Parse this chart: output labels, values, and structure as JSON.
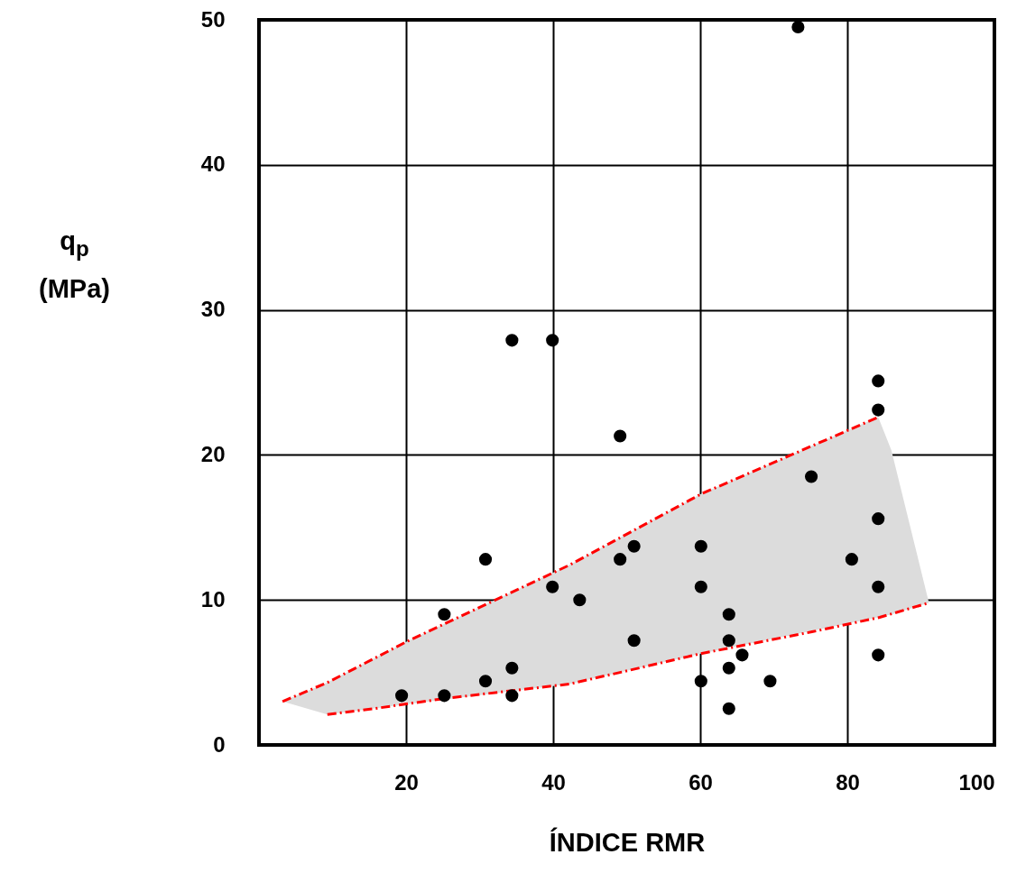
{
  "chart_data": {
    "type": "scatter",
    "xlabel": "ÍNDICE RMR",
    "ylabel": "q$_{p}$ (MPa)",
    "xlim": [
      0,
      100
    ],
    "ylim": [
      0,
      50
    ],
    "xticks": [
      20,
      40,
      60,
      80,
      100
    ],
    "yticks": [
      0,
      10,
      20,
      30,
      40,
      50
    ],
    "grid": true,
    "marker": "circle",
    "series": [
      {
        "type": "line",
        "color": "#ff0000",
        "line_style": "dashed",
        "marker": "none",
        "x": [
          3.2,
          9.3,
          20,
          42.2,
          60.1,
          84.2,
          86,
          91.1
        ],
        "values": [
          3.0,
          4.3,
          7.1,
          12.4,
          17.3,
          22.6,
          null,
          null
        ],
        "lower": [
          3.0,
          2.1,
          2.8,
          4.2,
          6.3,
          8.8,
          9.0,
          9.8
        ],
        "upper": [
          3.0,
          4.3,
          7.1,
          12.4,
          17.3,
          22.6,
          20.3,
          9.8
        ]
      },
      {
        "type": "line",
        "color": "#ff0000",
        "line_style": "dashed",
        "marker": "none",
        "x": [
          9.3,
          15.6,
          25.2,
          42.2,
          50.8,
          60.1,
          75.2,
          84.4,
          91.1
        ],
        "values": [
          2.1,
          2.5,
          3.2,
          4.2,
          5.2,
          6.3,
          7.8,
          8.8,
          9.8
        ]
      },
      {
        "color": "#000000",
        "x": [
          73.3,
          34.4,
          39.9,
          49.1,
          84.2,
          84.2,
          75.1,
          84.2,
          80.6,
          84.2,
          84.2,
          30.8,
          25.2,
          19.4,
          25.2,
          30.8,
          34.4,
          34.4,
          39.9,
          43.6,
          49.1,
          51.0,
          51.0,
          60.1,
          60.1,
          60.1,
          63.9,
          63.9,
          63.9,
          63.9,
          65.7,
          69.5
        ],
        "values": [
          49.5,
          27.9,
          27.9,
          21.3,
          25.1,
          23.1,
          18.5,
          15.6,
          12.8,
          10.9,
          6.2,
          12.8,
          9.0,
          3.4,
          3.4,
          4.4,
          5.3,
          3.4,
          10.9,
          10.0,
          12.8,
          13.7,
          7.2,
          13.7,
          10.9,
          4.4,
          9.0,
          7.2,
          5.3,
          2.5,
          6.2,
          4.4
        ]
      }
    ]
  }
}
